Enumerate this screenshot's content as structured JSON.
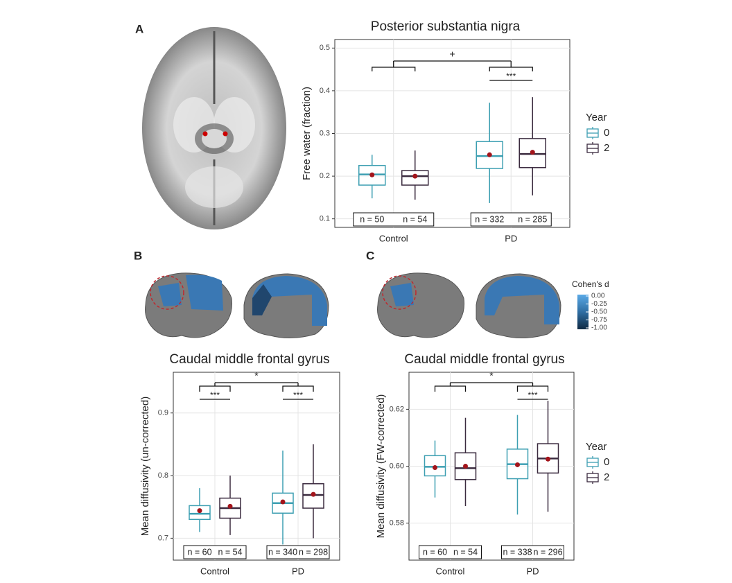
{
  "panel_labels": [
    "A",
    "B",
    "C"
  ],
  "colorbar": {
    "title": "Cohen's d",
    "ticks": [
      {
        "value": 0,
        "label": "0.00"
      },
      {
        "value": -0.25,
        "label": "-0.25"
      },
      {
        "value": -0.5,
        "label": "-0.50"
      },
      {
        "value": -0.75,
        "label": "-0.75"
      },
      {
        "value": -1,
        "label": "-1.00"
      }
    ]
  },
  "chart_data": [
    {
      "type": "box",
      "title": "Posterior substantia nigra",
      "y_label": "Free water (fraction)",
      "categories": [
        "Control",
        "PD"
      ],
      "ylim": [
        0.08,
        0.52
      ],
      "yticks": [
        0.1,
        0.2,
        0.3,
        0.4,
        0.5
      ],
      "grid": true,
      "legend": "right",
      "legend_title": "Year",
      "mean_color": "#a3141b",
      "series": [
        {
          "name": "0",
          "color": "#3d9fb2",
          "whislo": [
            0.148,
            0.137
          ],
          "q1": [
            0.179,
            0.218
          ],
          "median": [
            0.204,
            0.247
          ],
          "q3": [
            0.225,
            0.281
          ],
          "whishi": [
            0.25,
            0.372
          ],
          "mean": [
            0.203,
            0.25
          ]
        },
        {
          "name": "2",
          "color": "#3a2a3e",
          "whislo": [
            0.145,
            0.155
          ],
          "q1": [
            0.179,
            0.22
          ],
          "median": [
            0.2,
            0.252
          ],
          "q3": [
            0.213,
            0.288
          ],
          "whishi": [
            0.26,
            0.385
          ],
          "mean": [
            0.2,
            0.256
          ]
        }
      ],
      "group_test": "+",
      "year_tests": [
        null,
        "***"
      ],
      "n_labels": [
        [
          "n = 50",
          "n = 54"
        ],
        [
          "n = 332",
          "n = 285"
        ]
      ]
    },
    {
      "type": "box",
      "title": "Caudal middle frontal gyrus",
      "y_label": "Mean diffusivity (un-corrected)",
      "categories": [
        "Control",
        "PD"
      ],
      "ylim": [
        0.665,
        0.965
      ],
      "yticks": [
        0.7,
        0.8,
        0.9
      ],
      "grid": true,
      "mean_color": "#a3141b",
      "series": [
        {
          "color": "#3d9fb2",
          "whislo": [
            0.71,
            0.69
          ],
          "q1": [
            0.73,
            0.74
          ],
          "median": [
            0.739,
            0.756
          ],
          "q3": [
            0.752,
            0.772
          ],
          "whishi": [
            0.78,
            0.84
          ],
          "mean": [
            0.744,
            0.758
          ]
        },
        {
          "color": "#3a2a3e",
          "whislo": [
            0.705,
            0.7
          ],
          "q1": [
            0.732,
            0.748
          ],
          "median": [
            0.748,
            0.769
          ],
          "q3": [
            0.764,
            0.787
          ],
          "whishi": [
            0.8,
            0.85
          ],
          "mean": [
            0.751,
            0.77
          ]
        }
      ],
      "group_test": "*",
      "year_tests": [
        "***",
        "***"
      ],
      "n_labels": [
        [
          "n = 60",
          "n = 54"
        ],
        [
          "n = 340",
          "n = 298"
        ]
      ]
    },
    {
      "type": "box",
      "title": "Caudal middle frontal gyrus",
      "y_label": "Mean diffusivity (FW-corrected)",
      "categories": [
        "Control",
        "PD"
      ],
      "ylim": [
        0.567,
        0.633
      ],
      "yticks": [
        0.58,
        {
          "value": 0.6,
          "label": "0.60"
        },
        0.62
      ],
      "grid": true,
      "legend": "right",
      "legend_title": "Year",
      "mean_color": "#a3141b",
      "series": [
        {
          "name": "0",
          "color": "#3d9fb2",
          "whislo": [
            0.589,
            0.583
          ],
          "q1": [
            0.5966,
            0.5956
          ],
          "median": [
            0.5998,
            0.6007
          ],
          "q3": [
            0.6037,
            0.606
          ],
          "whishi": [
            0.609,
            0.618
          ],
          "mean": [
            0.5995,
            0.6005
          ]
        },
        {
          "name": "2",
          "color": "#3a2a3e",
          "whislo": [
            0.586,
            0.584
          ],
          "q1": [
            0.5953,
            0.5976
          ],
          "median": [
            0.5993,
            0.6027
          ],
          "q3": [
            0.6047,
            0.6079
          ],
          "whishi": [
            0.617,
            0.623
          ],
          "mean": [
            0.6,
            0.6025
          ]
        }
      ],
      "group_test": "*",
      "year_tests": [
        null,
        "***"
      ],
      "n_labels": [
        [
          "n = 60",
          "n = 54"
        ],
        [
          "n = 338",
          "n = 296"
        ]
      ]
    }
  ]
}
